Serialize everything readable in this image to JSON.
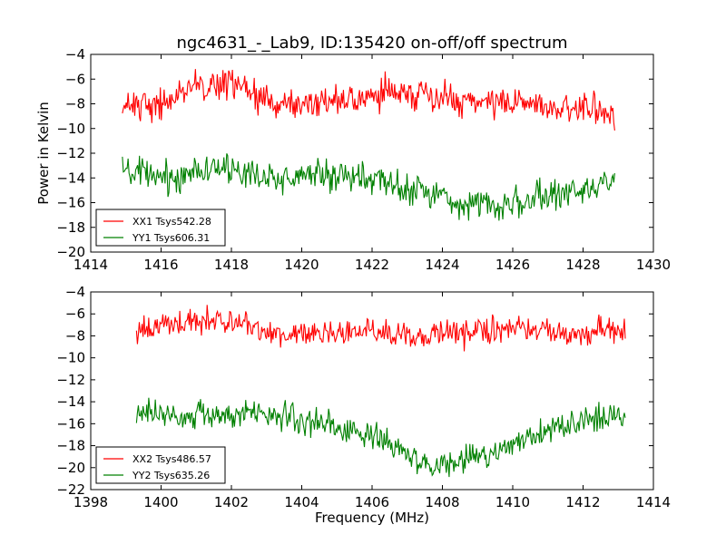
{
  "figure": {
    "title": "ngc4631_-_Lab9, ID:135420 on-off/off spectrum"
  },
  "chart_data": [
    {
      "type": "line",
      "title": "ngc4631_-_Lab9, ID:135420 on-off/off spectrum",
      "xlabel": "",
      "ylabel": "Power in Kelvin",
      "xlim": [
        1414,
        1430
      ],
      "ylim": [
        -20,
        -4
      ],
      "xticks": [
        1414,
        1416,
        1418,
        1420,
        1422,
        1424,
        1426,
        1428,
        1430
      ],
      "yticks": [
        -20,
        -18,
        -16,
        -14,
        -12,
        -10,
        -8,
        -6,
        -4
      ],
      "grid": false,
      "legend_position": "lower-left",
      "noise_amplitude": 1.0,
      "series": [
        {
          "name": "XX1 Tsys542.28",
          "color": "#ff0000",
          "x": [
            1414.9,
            1415.5,
            1416.0,
            1416.5,
            1417.0,
            1417.5,
            1418.0,
            1418.5,
            1419.0,
            1419.5,
            1420.0,
            1420.5,
            1421.0,
            1421.5,
            1422.0,
            1422.5,
            1423.0,
            1423.5,
            1424.0,
            1424.5,
            1425.0,
            1425.5,
            1426.0,
            1426.5,
            1427.0,
            1427.5,
            1428.0,
            1428.5,
            1428.9
          ],
          "y": [
            -8.2,
            -7.8,
            -8.0,
            -7.5,
            -6.5,
            -6.2,
            -6.5,
            -7.0,
            -7.8,
            -8.0,
            -8.2,
            -7.8,
            -7.6,
            -7.8,
            -7.3,
            -7.0,
            -7.2,
            -7.4,
            -7.5,
            -7.8,
            -7.8,
            -8.0,
            -7.8,
            -8.0,
            -8.2,
            -8.3,
            -8.5,
            -8.6,
            -8.8
          ]
        },
        {
          "name": "YY1 Tsys606.31",
          "color": "#008000",
          "x": [
            1414.9,
            1415.5,
            1416.0,
            1416.5,
            1417.0,
            1417.5,
            1418.0,
            1418.5,
            1419.0,
            1419.5,
            1420.0,
            1420.5,
            1421.0,
            1421.5,
            1422.0,
            1422.5,
            1423.0,
            1423.5,
            1424.0,
            1424.5,
            1425.0,
            1425.5,
            1426.0,
            1426.5,
            1427.0,
            1427.5,
            1428.0,
            1428.5,
            1428.9
          ],
          "y": [
            -13.5,
            -13.8,
            -14.0,
            -14.0,
            -13.2,
            -13.0,
            -13.5,
            -13.8,
            -14.0,
            -14.0,
            -13.8,
            -13.5,
            -13.8,
            -14.0,
            -14.2,
            -14.5,
            -14.8,
            -15.0,
            -15.5,
            -16.0,
            -16.0,
            -16.2,
            -16.0,
            -15.8,
            -15.5,
            -15.2,
            -14.8,
            -14.5,
            -14.2
          ]
        }
      ]
    },
    {
      "type": "line",
      "title": "",
      "xlabel": "Frequency (MHz)",
      "ylabel": "",
      "xlim": [
        1398,
        1414
      ],
      "ylim": [
        -22,
        -4
      ],
      "xticks": [
        1398,
        1400,
        1402,
        1404,
        1406,
        1408,
        1410,
        1412,
        1414
      ],
      "yticks": [
        -22,
        -20,
        -18,
        -16,
        -14,
        -12,
        -10,
        -8,
        -6,
        -4
      ],
      "grid": false,
      "legend_position": "lower-left",
      "noise_amplitude": 1.0,
      "series": [
        {
          "name": "XX2 Tsys486.57",
          "color": "#ff0000",
          "x": [
            1399.3,
            1399.8,
            1400.3,
            1400.8,
            1401.3,
            1401.8,
            1402.3,
            1402.8,
            1403.3,
            1403.8,
            1404.3,
            1404.8,
            1405.3,
            1405.8,
            1406.3,
            1406.8,
            1407.3,
            1407.8,
            1408.3,
            1408.8,
            1409.3,
            1409.8,
            1410.3,
            1410.8,
            1411.3,
            1411.8,
            1412.3,
            1412.8,
            1413.2
          ],
          "y": [
            -7.5,
            -7.2,
            -7.0,
            -6.8,
            -6.5,
            -6.7,
            -7.0,
            -7.5,
            -8.0,
            -8.2,
            -8.0,
            -7.8,
            -7.8,
            -7.6,
            -7.5,
            -7.8,
            -8.0,
            -8.0,
            -7.8,
            -7.6,
            -7.4,
            -7.3,
            -7.4,
            -7.6,
            -7.8,
            -7.8,
            -7.6,
            -7.5,
            -7.6
          ]
        },
        {
          "name": "YY2 Tsys635.26",
          "color": "#008000",
          "x": [
            1399.3,
            1399.8,
            1400.3,
            1400.8,
            1401.3,
            1401.8,
            1402.3,
            1402.8,
            1403.3,
            1403.8,
            1404.3,
            1404.8,
            1405.3,
            1405.8,
            1406.3,
            1406.8,
            1407.3,
            1407.8,
            1408.3,
            1408.8,
            1409.3,
            1409.8,
            1410.3,
            1410.8,
            1411.3,
            1411.8,
            1412.3,
            1412.8,
            1413.2
          ],
          "y": [
            -15.2,
            -15.0,
            -15.0,
            -15.2,
            -15.5,
            -15.3,
            -15.0,
            -15.0,
            -15.2,
            -15.6,
            -16.0,
            -16.2,
            -16.5,
            -17.0,
            -17.5,
            -18.5,
            -19.5,
            -20.0,
            -19.5,
            -19.0,
            -18.8,
            -18.3,
            -17.5,
            -16.8,
            -16.2,
            -15.8,
            -15.5,
            -15.3,
            -15.5
          ]
        }
      ]
    }
  ]
}
